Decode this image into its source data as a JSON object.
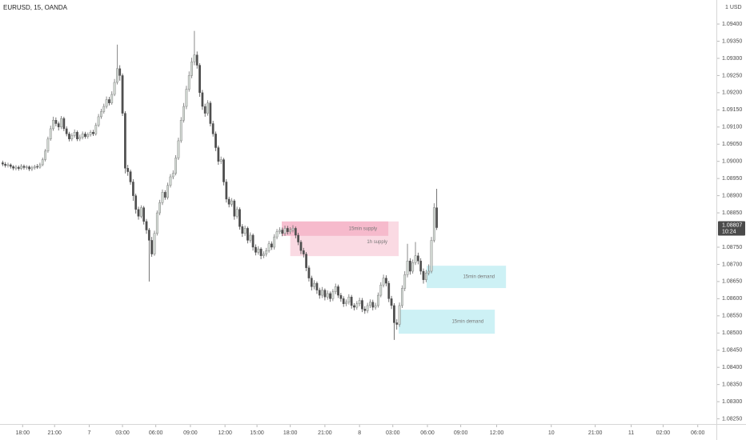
{
  "chart_data": {
    "type": "candlestick",
    "title": "EURUSD, 15, OANDA",
    "axis_unit": "1 USD",
    "colors": {
      "up": "#d3dad4",
      "up_border": "#6f6f6f",
      "down": "#4f4f4f"
    },
    "xlim": [
      -1,
      268
    ],
    "ylim": [
      1.08235,
      1.0947
    ],
    "xticks": [
      {
        "value": 7.5,
        "label": "18:00"
      },
      {
        "value": 19.5,
        "label": "21:00"
      },
      {
        "value": 32.5,
        "label": "7"
      },
      {
        "value": 45,
        "label": "03:00"
      },
      {
        "value": 57.5,
        "label": "06:00"
      },
      {
        "value": 70.5,
        "label": "09:00"
      },
      {
        "value": 83.5,
        "label": "12:00"
      },
      {
        "value": 95.5,
        "label": "15:00"
      },
      {
        "value": 108,
        "label": "18:00"
      },
      {
        "value": 121,
        "label": "21:00"
      },
      {
        "value": 134,
        "label": "8"
      },
      {
        "value": 146.5,
        "label": "03:00"
      },
      {
        "value": 159.5,
        "label": "06:00"
      },
      {
        "value": 172,
        "label": "09:00"
      },
      {
        "value": 185.5,
        "label": "12:00"
      },
      {
        "value": 206,
        "label": "10"
      },
      {
        "value": 222.5,
        "label": "21:00"
      },
      {
        "value": 236,
        "label": "11"
      },
      {
        "value": 248,
        "label": "02:00"
      },
      {
        "value": 261,
        "label": "06:00"
      }
    ],
    "yticks": [
      {
        "value": 1.094,
        "label": "1.09400"
      },
      {
        "value": 1.0935,
        "label": "1.09350"
      },
      {
        "value": 1.093,
        "label": "1.09300"
      },
      {
        "value": 1.0925,
        "label": "1.09250"
      },
      {
        "value": 1.092,
        "label": "1.09200"
      },
      {
        "value": 1.0915,
        "label": "1.09150"
      },
      {
        "value": 1.091,
        "label": "1.09100"
      },
      {
        "value": 1.0905,
        "label": "1.09050"
      },
      {
        "value": 1.09,
        "label": "1.09000"
      },
      {
        "value": 1.0895,
        "label": "1.08950"
      },
      {
        "value": 1.089,
        "label": "1.08900"
      },
      {
        "value": 1.0885,
        "label": "1.08850"
      },
      {
        "value": 1.0875,
        "label": "1.08750"
      },
      {
        "value": 1.087,
        "label": "1.08700"
      },
      {
        "value": 1.0865,
        "label": "1.08650"
      },
      {
        "value": 1.086,
        "label": "1.08600"
      },
      {
        "value": 1.0855,
        "label": "1.08550"
      },
      {
        "value": 1.085,
        "label": "1.08500"
      },
      {
        "value": 1.0845,
        "label": "1.08450"
      },
      {
        "value": 1.084,
        "label": "1.08400"
      },
      {
        "value": 1.0835,
        "label": "1.08350"
      },
      {
        "value": 1.083,
        "label": "1.08300"
      },
      {
        "value": 1.0825,
        "label": "1.08250"
      }
    ],
    "last_price": {
      "value": 1.08807,
      "label": "1.08807"
    },
    "countdown": "10:24",
    "zones": [
      {
        "label": "1h supply",
        "top": 1.08825,
        "bottom": 1.08724,
        "start": 108,
        "end": 148.7,
        "color": "#f9d3de"
      },
      {
        "label": "15min supply",
        "top": 1.08825,
        "bottom": 1.08783,
        "start": 104.8,
        "end": 144.8,
        "color": "#f4b4c8"
      },
      {
        "label": "15min demand",
        "top": 1.08696,
        "bottom": 1.08631,
        "start": 159.2,
        "end": 189,
        "color": "#c4eef3"
      },
      {
        "label": "15min demand",
        "top": 1.08568,
        "bottom": 1.08498,
        "start": 148.7,
        "end": 184.8,
        "color": "#c4eef3"
      }
    ],
    "candles": [
      [
        1.08996,
        1.09002,
        1.08986,
        1.08992
      ],
      [
        1.08992,
        1.08998,
        1.08982,
        1.08988
      ],
      [
        1.08988,
        1.08996,
        1.08982,
        1.0899
      ],
      [
        1.0899,
        1.08994,
        1.08979,
        1.08985
      ],
      [
        1.08985,
        1.08989,
        1.08974,
        1.0898
      ],
      [
        1.0898,
        1.08989,
        1.08974,
        1.08983
      ],
      [
        1.08983,
        1.08988,
        1.08973,
        1.08979
      ],
      [
        1.08979,
        1.08992,
        1.08975,
        1.08986
      ],
      [
        1.08986,
        1.08991,
        1.08976,
        1.08982
      ],
      [
        1.08982,
        1.08989,
        1.08976,
        1.08984
      ],
      [
        1.08984,
        1.08988,
        1.08972,
        1.08978
      ],
      [
        1.08978,
        1.08987,
        1.08972,
        1.08981
      ],
      [
        1.08981,
        1.0899,
        1.08976,
        1.08985
      ],
      [
        1.08985,
        1.08992,
        1.08978,
        1.08983
      ],
      [
        1.08983,
        1.08996,
        1.08979,
        1.0899
      ],
      [
        1.0899,
        1.09011,
        1.08986,
        1.09005
      ],
      [
        1.09005,
        1.09036,
        1.09,
        1.0903
      ],
      [
        1.0903,
        1.09072,
        1.09025,
        1.09065
      ],
      [
        1.09065,
        1.09104,
        1.0906,
        1.09095
      ],
      [
        1.09095,
        1.0913,
        1.09089,
        1.0912
      ],
      [
        1.0912,
        1.09128,
        1.09102,
        1.0911
      ],
      [
        1.0911,
        1.09116,
        1.0909,
        1.091
      ],
      [
        1.091,
        1.09132,
        1.09094,
        1.09125
      ],
      [
        1.09125,
        1.0913,
        1.09088,
        1.09095
      ],
      [
        1.09095,
        1.09102,
        1.09073,
        1.0908
      ],
      [
        1.0908,
        1.09086,
        1.09058,
        1.09065
      ],
      [
        1.09065,
        1.09082,
        1.09059,
        1.09075
      ],
      [
        1.09075,
        1.09093,
        1.09069,
        1.09085
      ],
      [
        1.09085,
        1.0909,
        1.09059,
        1.09065
      ],
      [
        1.09065,
        1.09078,
        1.09059,
        1.0907
      ],
      [
        1.0907,
        1.09087,
        1.09064,
        1.0908
      ],
      [
        1.0908,
        1.09086,
        1.09066,
        1.09072
      ],
      [
        1.09072,
        1.09084,
        1.09066,
        1.09078
      ],
      [
        1.09078,
        1.09091,
        1.09072,
        1.09085
      ],
      [
        1.09085,
        1.09092,
        1.09074,
        1.0908
      ],
      [
        1.0908,
        1.09112,
        1.09075,
        1.09105
      ],
      [
        1.09105,
        1.09138,
        1.091,
        1.0913
      ],
      [
        1.0913,
        1.09153,
        1.09124,
        1.09145
      ],
      [
        1.09145,
        1.09168,
        1.09139,
        1.0916
      ],
      [
        1.0916,
        1.09189,
        1.09154,
        1.0918
      ],
      [
        1.0918,
        1.09188,
        1.09163,
        1.0917
      ],
      [
        1.0917,
        1.09204,
        1.09165,
        1.09195
      ],
      [
        1.09195,
        1.0924,
        1.0919,
        1.0923
      ],
      [
        1.0923,
        1.0934,
        1.09224,
        1.0927
      ],
      [
        1.0927,
        1.0928,
        1.09235,
        1.0925
      ],
      [
        1.0925,
        1.09256,
        1.09132,
        1.0914
      ],
      [
        1.0914,
        1.09146,
        1.08965,
        1.0898
      ],
      [
        1.0898,
        1.0899,
        1.08958,
        1.0897
      ],
      [
        1.0897,
        1.08976,
        1.08932,
        1.0894
      ],
      [
        1.0894,
        1.08948,
        1.08885,
        1.089
      ],
      [
        1.089,
        1.08906,
        1.08848,
        1.0886
      ],
      [
        1.0886,
        1.08868,
        1.0883,
        1.0884
      ],
      [
        1.0884,
        1.08872,
        1.08834,
        1.08865
      ],
      [
        1.08865,
        1.0887,
        1.08816,
        1.08825
      ],
      [
        1.08825,
        1.08832,
        1.08789,
        1.088
      ],
      [
        1.088,
        1.08806,
        1.0865,
        1.0877
      ],
      [
        1.0877,
        1.0878,
        1.08722,
        1.0873
      ],
      [
        1.0873,
        1.08798,
        1.08725,
        1.0879
      ],
      [
        1.0879,
        1.08857,
        1.08784,
        1.0885
      ],
      [
        1.0885,
        1.08888,
        1.08843,
        1.0888
      ],
      [
        1.0888,
        1.08918,
        1.08873,
        1.0891
      ],
      [
        1.0891,
        1.08916,
        1.08888,
        1.08895
      ],
      [
        1.08895,
        1.08938,
        1.08889,
        1.0893
      ],
      [
        1.0893,
        1.08963,
        1.08924,
        1.08955
      ],
      [
        1.08955,
        1.08974,
        1.08948,
        1.08965
      ],
      [
        1.08965,
        1.09018,
        1.08959,
        1.0901
      ],
      [
        1.0901,
        1.09069,
        1.09004,
        1.0906
      ],
      [
        1.0906,
        1.09129,
        1.09054,
        1.0912
      ],
      [
        1.0912,
        1.0917,
        1.09113,
        1.0916
      ],
      [
        1.0916,
        1.0922,
        1.09152,
        1.0921
      ],
      [
        1.0921,
        1.09262,
        1.09203,
        1.0925
      ],
      [
        1.0925,
        1.09302,
        1.09242,
        1.0929
      ],
      [
        1.0929,
        1.0938,
        1.0928,
        1.0931
      ],
      [
        1.0931,
        1.0932,
        1.0927,
        1.0928
      ],
      [
        1.0928,
        1.09286,
        1.09188,
        1.092
      ],
      [
        1.092,
        1.09208,
        1.0915,
        1.0916
      ],
      [
        1.0916,
        1.09168,
        1.0913,
        1.0914
      ],
      [
        1.0914,
        1.09178,
        1.09133,
        1.0917
      ],
      [
        1.0917,
        1.09176,
        1.09102,
        1.0911
      ],
      [
        1.0911,
        1.09118,
        1.09072,
        1.0908
      ],
      [
        1.0908,
        1.09087,
        1.0903,
        1.0904
      ],
      [
        1.0904,
        1.09046,
        1.0899,
        1.09
      ],
      [
        1.09,
        1.09014,
        1.08992,
        1.09005
      ],
      [
        1.09005,
        1.0901,
        1.0893,
        1.0894
      ],
      [
        1.0894,
        1.08948,
        1.0888,
        1.0889
      ],
      [
        1.0889,
        1.08897,
        1.08866,
        1.08875
      ],
      [
        1.08875,
        1.08893,
        1.08868,
        1.08885
      ],
      [
        1.08885,
        1.0889,
        1.0883,
        1.0884
      ],
      [
        1.0884,
        1.08868,
        1.08833,
        1.0886
      ],
      [
        1.0886,
        1.08866,
        1.08801,
        1.0881
      ],
      [
        1.0881,
        1.08817,
        1.0878,
        1.0879
      ],
      [
        1.0879,
        1.08813,
        1.08783,
        1.08805
      ],
      [
        1.08805,
        1.0881,
        1.08761,
        1.0877
      ],
      [
        1.0877,
        1.08793,
        1.08763,
        1.08785
      ],
      [
        1.08785,
        1.0879,
        1.0874,
        1.0875
      ],
      [
        1.0875,
        1.08758,
        1.08726,
        1.08735
      ],
      [
        1.08735,
        1.08753,
        1.08728,
        1.08745
      ],
      [
        1.08745,
        1.0875,
        1.08715,
        1.08725
      ],
      [
        1.08725,
        1.08738,
        1.08718,
        1.0873
      ],
      [
        1.0873,
        1.08748,
        1.08723,
        1.0874
      ],
      [
        1.0874,
        1.08768,
        1.08734,
        1.0876
      ],
      [
        1.0876,
        1.08767,
        1.08742,
        1.0875
      ],
      [
        1.0875,
        1.08788,
        1.08743,
        1.0878
      ],
      [
        1.0878,
        1.08803,
        1.08773,
        1.08795
      ],
      [
        1.08795,
        1.08808,
        1.08788,
        1.088
      ],
      [
        1.088,
        1.08807,
        1.08782,
        1.0879
      ],
      [
        1.0879,
        1.08813,
        1.08783,
        1.08805
      ],
      [
        1.08805,
        1.08812,
        1.08787,
        1.08795
      ],
      [
        1.08795,
        1.08808,
        1.08788,
        1.088
      ],
      [
        1.088,
        1.08814,
        1.08793,
        1.08805
      ],
      [
        1.08805,
        1.0881,
        1.08776,
        1.08785
      ],
      [
        1.08785,
        1.08792,
        1.08756,
        1.08765
      ],
      [
        1.08765,
        1.08771,
        1.0873,
        1.0874
      ],
      [
        1.0874,
        1.08748,
        1.0872,
        1.0873
      ],
      [
        1.0873,
        1.08736,
        1.0868,
        1.0869
      ],
      [
        1.0869,
        1.08697,
        1.0865,
        1.0866
      ],
      [
        1.0866,
        1.08667,
        1.08624,
        1.08635
      ],
      [
        1.08635,
        1.08654,
        1.08627,
        1.08645
      ],
      [
        1.08645,
        1.0865,
        1.08614,
        1.08625
      ],
      [
        1.08625,
        1.08632,
        1.086,
        1.0861
      ],
      [
        1.0861,
        1.08634,
        1.08602,
        1.08625
      ],
      [
        1.08625,
        1.0863,
        1.08595,
        1.08605
      ],
      [
        1.08605,
        1.08624,
        1.08597,
        1.08615
      ],
      [
        1.08615,
        1.08621,
        1.08591,
        1.086
      ],
      [
        1.086,
        1.08628,
        1.08593,
        1.0862
      ],
      [
        1.0862,
        1.08644,
        1.08613,
        1.08635
      ],
      [
        1.08635,
        1.08641,
        1.08602,
        1.0861
      ],
      [
        1.0861,
        1.08617,
        1.08591,
        1.086
      ],
      [
        1.086,
        1.08607,
        1.08576,
        1.08585
      ],
      [
        1.08585,
        1.08598,
        1.08578,
        1.0859
      ],
      [
        1.0859,
        1.08613,
        1.08583,
        1.08605
      ],
      [
        1.08605,
        1.08611,
        1.08571,
        1.0858
      ],
      [
        1.0858,
        1.08587,
        1.08566,
        1.08575
      ],
      [
        1.08575,
        1.08593,
        1.08568,
        1.08585
      ],
      [
        1.08585,
        1.08603,
        1.08578,
        1.08595
      ],
      [
        1.08595,
        1.08602,
        1.08561,
        1.0857
      ],
      [
        1.0857,
        1.08578,
        1.08556,
        1.08565
      ],
      [
        1.08565,
        1.08588,
        1.08558,
        1.0858
      ],
      [
        1.0858,
        1.08598,
        1.08573,
        1.0859
      ],
      [
        1.0859,
        1.08597,
        1.08566,
        1.08575
      ],
      [
        1.08575,
        1.08588,
        1.08568,
        1.0858
      ],
      [
        1.0858,
        1.08618,
        1.08574,
        1.0861
      ],
      [
        1.0861,
        1.08648,
        1.08604,
        1.0864
      ],
      [
        1.0864,
        1.0867,
        1.08633,
        1.0866
      ],
      [
        1.0866,
        1.08668,
        1.08636,
        1.08645
      ],
      [
        1.08645,
        1.08652,
        1.0859,
        1.086
      ],
      [
        1.086,
        1.08608,
        1.0857,
        1.0858
      ],
      [
        1.0858,
        1.08587,
        1.0848,
        1.0853
      ],
      [
        1.0853,
        1.0854,
        1.0851,
        1.08525
      ],
      [
        1.08525,
        1.08589,
        1.08518,
        1.0858
      ],
      [
        1.0858,
        1.08639,
        1.08573,
        1.0863
      ],
      [
        1.0863,
        1.0868,
        1.08622,
        1.0867
      ],
      [
        1.0867,
        1.0876,
        1.08662,
        1.0871
      ],
      [
        1.0871,
        1.08718,
        1.0867,
        1.0868
      ],
      [
        1.0868,
        1.08714,
        1.08673,
        1.08705
      ],
      [
        1.08705,
        1.08765,
        1.08698,
        1.08725
      ],
      [
        1.08725,
        1.08734,
        1.087,
        1.0871
      ],
      [
        1.0871,
        1.08718,
        1.0867,
        1.0868
      ],
      [
        1.0868,
        1.08688,
        1.08644,
        1.08655
      ],
      [
        1.08655,
        1.08684,
        1.08648,
        1.08675
      ],
      [
        1.08675,
        1.087,
        1.08668,
        1.0868
      ],
      [
        1.0868,
        1.0878,
        1.08674,
        1.0877
      ],
      [
        1.0877,
        1.08878,
        1.08764,
        1.08865
      ],
      [
        1.08865,
        1.0892,
        1.088,
        1.08807
      ]
    ]
  }
}
